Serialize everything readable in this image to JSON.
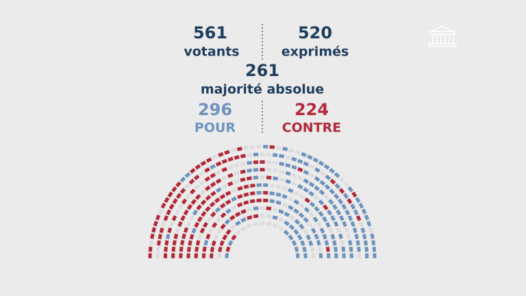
{
  "votants": {
    "value": 561,
    "label": "votants"
  },
  "exprimes": {
    "value": 520,
    "label": "exprimés"
  },
  "majorite": {
    "value": 261,
    "label": "majorité absolue"
  },
  "pour": {
    "value": 296,
    "label": "POUR"
  },
  "contre": {
    "value": 224,
    "label": "CONTRE"
  }
}
